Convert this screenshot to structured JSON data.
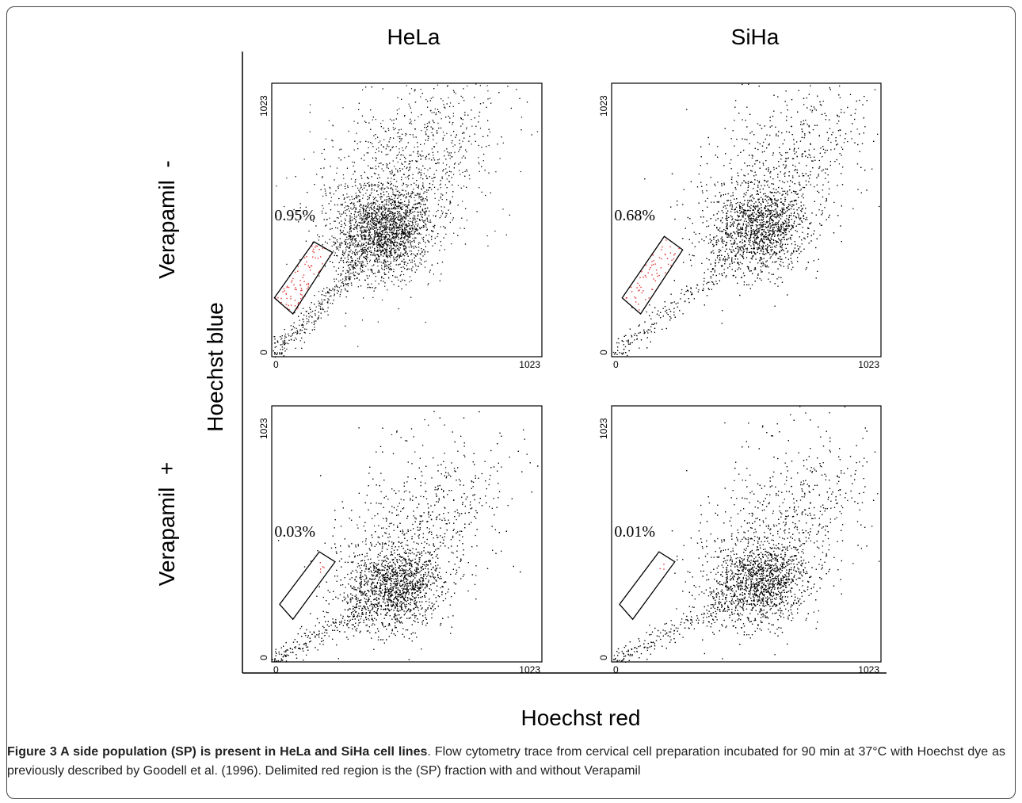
{
  "figure": {
    "column_headers": [
      "HeLa",
      "SiHa"
    ],
    "row_labels": [
      "Verapamil  -",
      "Verapamil  +"
    ],
    "y_axis_label": "Hoechst blue",
    "x_axis_label": "Hoechst red",
    "caption_title": "Figure 3 A side population (SP) is present in HeLa and SiHa cell lines",
    "caption_body": ". Flow cytometry trace from cervical cell preparation incubated for 90 min at 37°C with Hoechst dye as previously described by Goodell et al. (1996). Delimited red region is the (SP) fraction with and without Verapamil"
  },
  "colors": {
    "dots": "#000000",
    "sp_dots": "#e03030",
    "gate": "#000000"
  },
  "chart_data": [
    {
      "type": "scatter",
      "cell_line": "HeLa",
      "condition": "Verapamil -",
      "sp_percent": 0.95,
      "sp_label": "0.95%",
      "xlim": [
        0,
        1023
      ],
      "ylim": [
        0,
        1023
      ],
      "xtick_labels": [
        "0",
        "1023"
      ],
      "ytick_labels": [
        "0",
        "1023"
      ],
      "main_cluster_center": [
        420,
        470
      ]
    },
    {
      "type": "scatter",
      "cell_line": "SiHa",
      "condition": "Verapamil -",
      "sp_percent": 0.68,
      "sp_label": "0.68%",
      "xlim": [
        0,
        1023
      ],
      "ylim": [
        0,
        1023
      ],
      "xtick_labels": [
        "0",
        "1023"
      ],
      "ytick_labels": [
        "0",
        "1023"
      ],
      "main_cluster_center": [
        560,
        480
      ]
    },
    {
      "type": "scatter",
      "cell_line": "HeLa",
      "condition": "Verapamil +",
      "sp_percent": 0.03,
      "sp_label": "0.03%",
      "xlim": [
        0,
        1023
      ],
      "ylim": [
        0,
        1023
      ],
      "xtick_labels": [
        "0",
        "1023"
      ],
      "ytick_labels": [
        "0",
        "1023"
      ],
      "main_cluster_center": [
        460,
        300
      ]
    },
    {
      "type": "scatter",
      "cell_line": "SiHa",
      "condition": "Verapamil +",
      "sp_percent": 0.01,
      "sp_label": "0.01%",
      "xlim": [
        0,
        1023
      ],
      "ylim": [
        0,
        1023
      ],
      "xtick_labels": [
        "0",
        "1023"
      ],
      "ytick_labels": [
        "0",
        "1023"
      ],
      "main_cluster_center": [
        560,
        320
      ]
    }
  ]
}
